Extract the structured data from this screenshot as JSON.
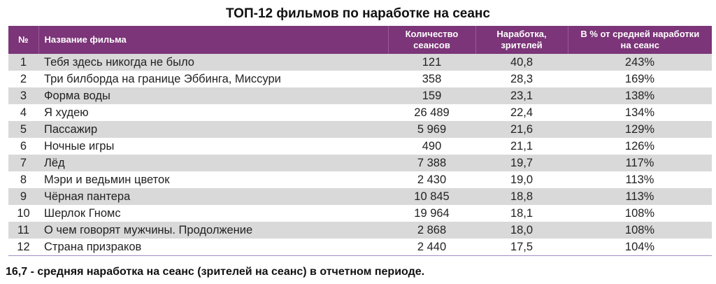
{
  "title": "ТОП-12 фильмов по наработке на сеанс",
  "colors": {
    "header_bg": "#7b3578",
    "header_text": "#ffffff",
    "row_shade": "#d9d9d9"
  },
  "table": {
    "headers": {
      "num": "№",
      "name": "Название фильма",
      "sessions_line1": "Количество",
      "sessions_line2": "сеансов",
      "per_session_line1": "Наработка,",
      "per_session_line2": "зрителей",
      "percent_line1": "В % от средней наработки",
      "percent_line2": "на сеанс"
    },
    "rows": [
      {
        "num": "1",
        "name": "Тебя здесь никогда не было",
        "sessions": "121",
        "per_session": "40,8",
        "percent": "243%"
      },
      {
        "num": "2",
        "name": "Три билборда на границе Эббинга, Миссури",
        "sessions": "358",
        "per_session": "28,3",
        "percent": "169%"
      },
      {
        "num": "3",
        "name": "Форма воды",
        "sessions": "159",
        "per_session": "23,1",
        "percent": "138%"
      },
      {
        "num": "4",
        "name": "Я худею",
        "sessions": "26 489",
        "per_session": "22,4",
        "percent": "134%"
      },
      {
        "num": "5",
        "name": "Пассажир",
        "sessions": "5 969",
        "per_session": "21,6",
        "percent": "129%"
      },
      {
        "num": "6",
        "name": "Ночные игры",
        "sessions": "490",
        "per_session": "21,1",
        "percent": "126%"
      },
      {
        "num": "7",
        "name": "Лёд",
        "sessions": "7 388",
        "per_session": "19,7",
        "percent": "117%"
      },
      {
        "num": "8",
        "name": "Мэри и ведьмин цветок",
        "sessions": "2 430",
        "per_session": "19,0",
        "percent": "113%"
      },
      {
        "num": "9",
        "name": "Чёрная пантера",
        "sessions": "10 845",
        "per_session": "18,8",
        "percent": "113%"
      },
      {
        "num": "10",
        "name": "Шерлок Гномс",
        "sessions": "19 964",
        "per_session": "18,1",
        "percent": "108%"
      },
      {
        "num": "11",
        "name": "О чем говорят мужчины. Продолжение",
        "sessions": "2 868",
        "per_session": "18,0",
        "percent": "108%"
      },
      {
        "num": "12",
        "name": "Страна призраков",
        "sessions": "2 440",
        "per_session": "17,5",
        "percent": "104%"
      }
    ]
  },
  "footnote": "16,7 - средняя наработка на сеанс (зрителей на сеанс) в отчетном периоде."
}
